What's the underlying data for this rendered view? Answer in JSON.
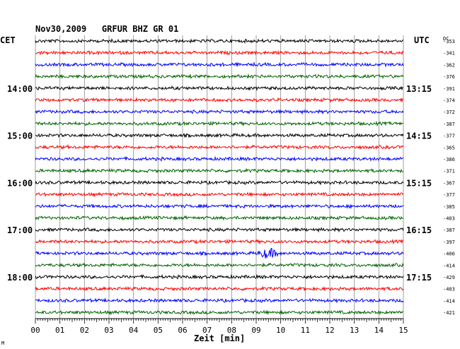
{
  "header": {
    "title": "Nov30,2009   GRFUR BHZ GR 01",
    "left_tz": "CET",
    "right_tz": "UTC",
    "dc_label": "DC"
  },
  "chart_data": {
    "type": "line",
    "title": "Nov30,2009   GRFUR BHZ GR 01",
    "xlabel": "Zeit [min]",
    "ylabel": "",
    "xlim": [
      0,
      15
    ],
    "x_ticks": [
      "00",
      "01",
      "02",
      "03",
      "04",
      "05",
      "06",
      "07",
      "08",
      "09",
      "10",
      "11",
      "12",
      "13",
      "14",
      "15"
    ],
    "left_time_labels": [
      "14:00",
      "15:00",
      "16:00",
      "17:00",
      "18:00"
    ],
    "right_time_labels": [
      "13:15",
      "14:15",
      "15:15",
      "16:15",
      "17:15"
    ],
    "time_label_trace_index": [
      4,
      8,
      12,
      16,
      20
    ],
    "trace_colors": [
      "#000000",
      "#ff0000",
      "#0000ff",
      "#006400"
    ],
    "dc_offsets": [
      -353,
      -341,
      -362,
      -376,
      -391,
      -374,
      -372,
      -387,
      -377,
      -365,
      -386,
      -371,
      -367,
      -377,
      -385,
      -403,
      -387,
      -397,
      -406,
      -414,
      -429,
      -403,
      -414,
      -421
    ],
    "events": [
      {
        "trace_index": 18,
        "minute": 9.5,
        "note": "signal burst"
      }
    ],
    "grid": true
  },
  "footer": {
    "corner_mark": "M"
  }
}
